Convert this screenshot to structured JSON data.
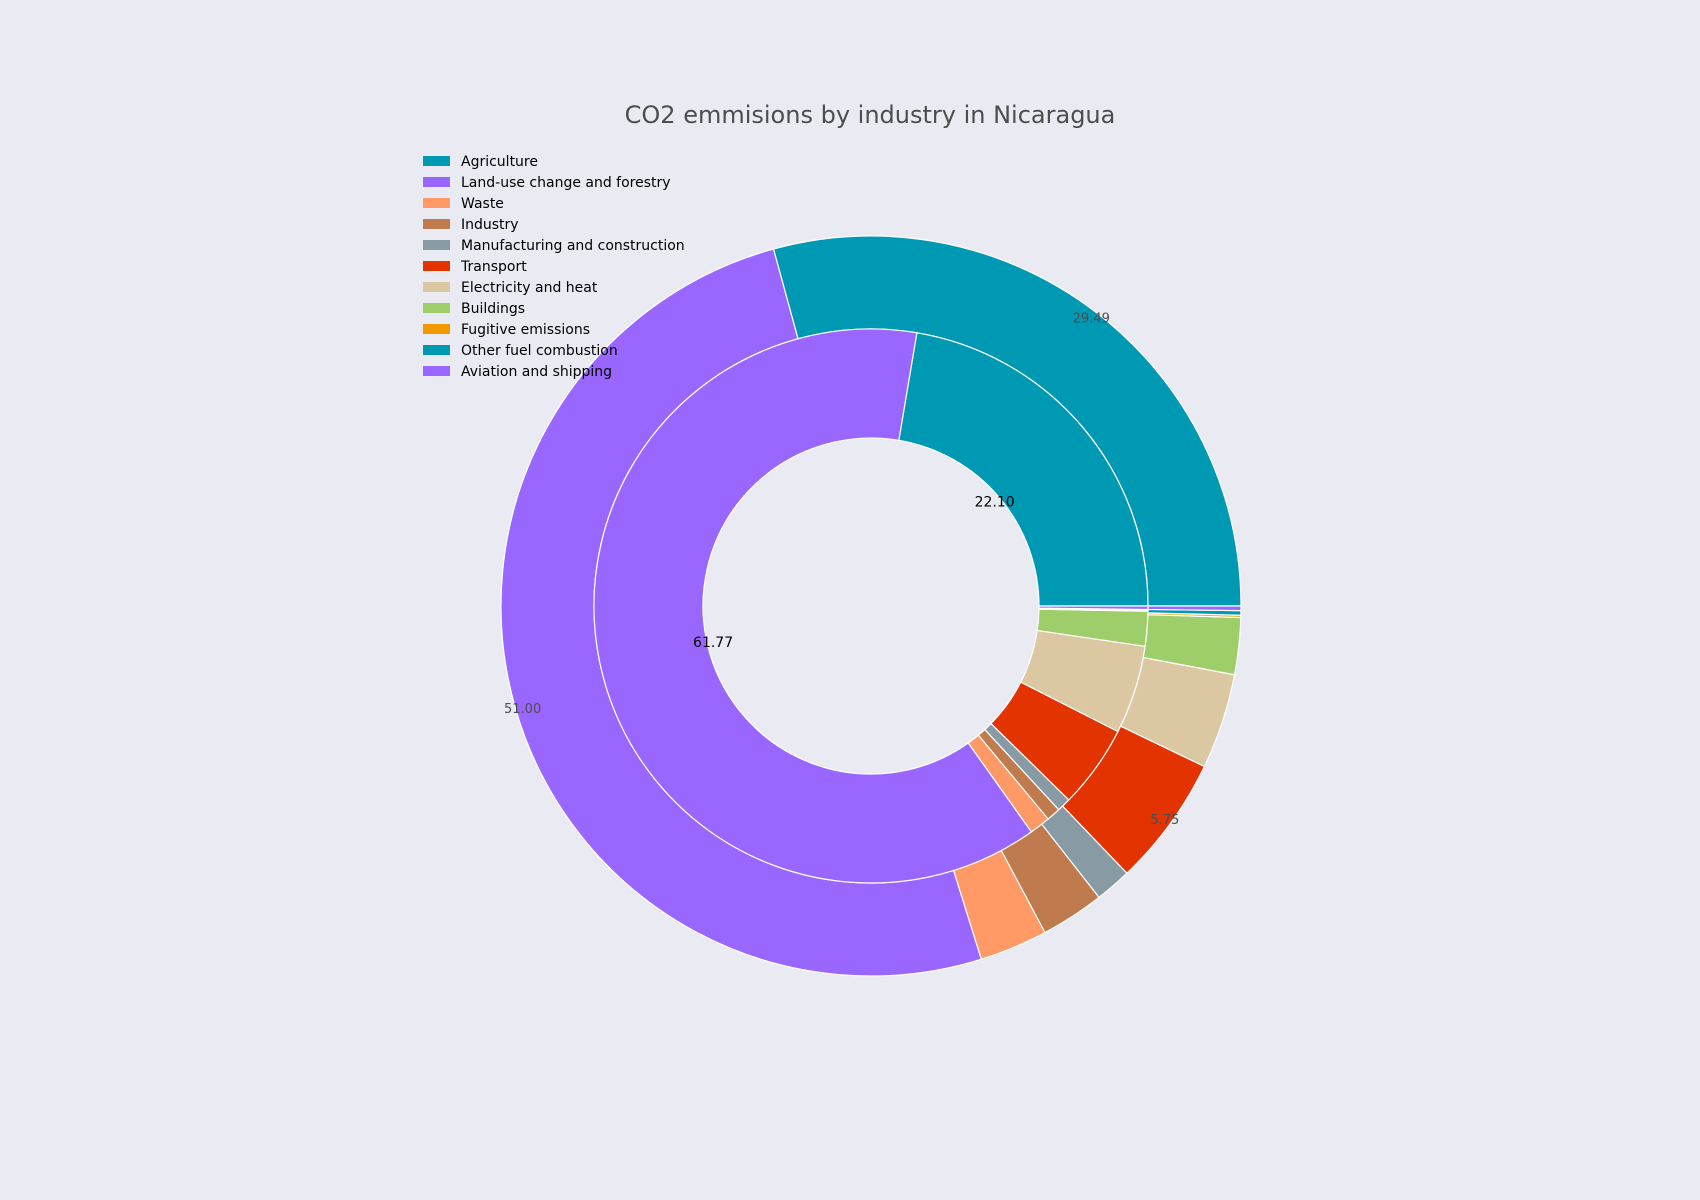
{
  "chart_data": {
    "type": "pie",
    "subtype": "nested-donut",
    "title": "CO2 emmisions by industry in Nicaragua",
    "legend": {
      "placement": "top-left",
      "entries": [
        {
          "label": "Agriculture",
          "color": "#0099B4"
        },
        {
          "label": "Land-use change and forestry",
          "color": "#9966FF"
        },
        {
          "label": "Waste",
          "color": "#FF9966"
        },
        {
          "label": "Industry",
          "color": "#BF7A4D"
        },
        {
          "label": "Manufacturing and construction",
          "color": "#889AA4"
        },
        {
          "label": "Transport",
          "color": "#E33300"
        },
        {
          "label": "Electricity and heat",
          "color": "#DBC8A2"
        },
        {
          "label": "Buildings",
          "color": "#9DCE6A"
        },
        {
          "label": "Fugitive emissions",
          "color": "#F29900"
        },
        {
          "label": "Other fuel combustion",
          "color": "#0099B4"
        },
        {
          "label": "Aviation and shipping",
          "color": "#9966FF"
        }
      ]
    },
    "inner_ring": {
      "slices": [
        {
          "label": "Agriculture",
          "value": 22.1,
          "color": "#0099B4",
          "show_label": true
        },
        {
          "label": "Land-use change and forestry",
          "value": 61.77,
          "color": "#9966FF",
          "show_label": true
        },
        {
          "label": "Waste",
          "value": 1.2,
          "color": "#FF9966",
          "show_label": false
        },
        {
          "label": "Industry",
          "value": 0.8,
          "color": "#BF7A4D",
          "show_label": false
        },
        {
          "label": "Manufacturing and construction",
          "value": 0.8,
          "color": "#889AA4",
          "show_label": false
        },
        {
          "label": "Transport",
          "value": 4.8,
          "color": "#E33300",
          "show_label": false
        },
        {
          "label": "Electricity and heat",
          "value": 5.1,
          "color": "#DBC8A2",
          "show_label": false
        },
        {
          "label": "Buildings",
          "value": 2.0,
          "color": "#9DCE6A",
          "show_label": false
        },
        {
          "label": "Fugitive emissions",
          "value": 0.05,
          "color": "#F29900",
          "show_label": false
        },
        {
          "label": "Other fuel combustion",
          "value": 0.05,
          "color": "#0099B4",
          "show_label": false
        },
        {
          "label": "Aviation and shipping",
          "value": 0.2,
          "color": "#9966FF",
          "show_label": false
        }
      ]
    },
    "outer_ring": {
      "slices": [
        {
          "label": "Agriculture",
          "value": 29.49,
          "color": "#0099B4",
          "show_label": true
        },
        {
          "label": "Land-use change and forestry",
          "value": 51.0,
          "color": "#9966FF",
          "show_label": true
        },
        {
          "label": "Waste",
          "value": 3.0,
          "color": "#FF9966",
          "show_label": false
        },
        {
          "label": "Industry",
          "value": 2.8,
          "color": "#BF7A4D",
          "show_label": false
        },
        {
          "label": "Manufacturing and construction",
          "value": 1.6,
          "color": "#889AA4",
          "show_label": false
        },
        {
          "label": "Transport",
          "value": 5.75,
          "color": "#E33300",
          "show_label": true
        },
        {
          "label": "Electricity and heat",
          "value": 4.2,
          "color": "#DBC8A2",
          "show_label": false
        },
        {
          "label": "Buildings",
          "value": 2.5,
          "color": "#9DCE6A",
          "show_label": false
        },
        {
          "label": "Fugitive emissions",
          "value": 0.1,
          "color": "#F29900",
          "show_label": false
        },
        {
          "label": "Other fuel combustion",
          "value": 0.2,
          "color": "#0099B4",
          "show_label": false
        },
        {
          "label": "Aviation and shipping",
          "value": 0.2,
          "color": "#9966FF",
          "show_label": false
        }
      ]
    }
  }
}
